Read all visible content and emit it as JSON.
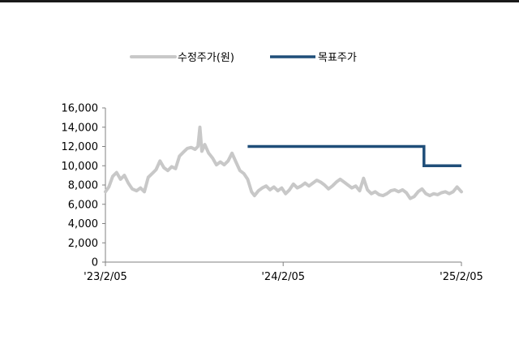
{
  "chart_data": {
    "type": "line",
    "legend": {
      "placement": "top",
      "entries": [
        {
          "label": "수정주가(원)",
          "color": "#c8c8c8"
        },
        {
          "label": "목표주가",
          "color": "#1f4e79"
        }
      ]
    },
    "x_axis": {
      "type": "date",
      "range": [
        "2023-02-05",
        "2025-02-05"
      ],
      "tick_labels": [
        "'23/2/05",
        "'24/2/05",
        "'25/2/05"
      ],
      "tick_dates": [
        "2023-02-05",
        "2024-02-05",
        "2025-02-05"
      ]
    },
    "y_axis": {
      "range": [
        0,
        16000
      ],
      "tick_values": [
        0,
        2000,
        4000,
        6000,
        8000,
        10000,
        12000,
        14000,
        16000
      ],
      "tick_labels": [
        "0",
        "2,000",
        "4,000",
        "6,000",
        "8,000",
        "10,000",
        "12,000",
        "14,000",
        "16,000"
      ]
    },
    "grid": false,
    "series": [
      {
        "name": "수정주가(원)",
        "color": "#c8c8c8",
        "points": [
          [
            "2023-02-05",
            7300
          ],
          [
            "2023-02-12",
            7800
          ],
          [
            "2023-02-20",
            8900
          ],
          [
            "2023-02-28",
            9300
          ],
          [
            "2023-03-08",
            8600
          ],
          [
            "2023-03-16",
            9000
          ],
          [
            "2023-03-24",
            8200
          ],
          [
            "2023-04-01",
            7600
          ],
          [
            "2023-04-10",
            7400
          ],
          [
            "2023-04-18",
            7700
          ],
          [
            "2023-04-26",
            7300
          ],
          [
            "2023-05-04",
            8800
          ],
          [
            "2023-05-12",
            9200
          ],
          [
            "2023-05-20",
            9600
          ],
          [
            "2023-05-28",
            10500
          ],
          [
            "2023-06-05",
            9800
          ],
          [
            "2023-06-13",
            9500
          ],
          [
            "2023-06-21",
            9900
          ],
          [
            "2023-06-29",
            9700
          ],
          [
            "2023-07-07",
            11000
          ],
          [
            "2023-07-15",
            11400
          ],
          [
            "2023-07-23",
            11800
          ],
          [
            "2023-07-31",
            11900
          ],
          [
            "2023-08-08",
            11700
          ],
          [
            "2023-08-14",
            12000
          ],
          [
            "2023-08-18",
            14000
          ],
          [
            "2023-08-22",
            11500
          ],
          [
            "2023-08-28",
            12200
          ],
          [
            "2023-09-05",
            11300
          ],
          [
            "2023-09-13",
            10800
          ],
          [
            "2023-09-21",
            10100
          ],
          [
            "2023-09-29",
            10400
          ],
          [
            "2023-10-07",
            10100
          ],
          [
            "2023-10-15",
            10500
          ],
          [
            "2023-10-23",
            11300
          ],
          [
            "2023-10-31",
            10400
          ],
          [
            "2023-11-08",
            9500
          ],
          [
            "2023-11-16",
            9200
          ],
          [
            "2023-11-24",
            8600
          ],
          [
            "2023-12-02",
            7300
          ],
          [
            "2023-12-08",
            6900
          ],
          [
            "2023-12-16",
            7400
          ],
          [
            "2023-12-24",
            7700
          ],
          [
            "2024-01-01",
            7900
          ],
          [
            "2024-01-09",
            7500
          ],
          [
            "2024-01-17",
            7800
          ],
          [
            "2024-01-25",
            7400
          ],
          [
            "2024-02-02",
            7700
          ],
          [
            "2024-02-10",
            7100
          ],
          [
            "2024-02-18",
            7500
          ],
          [
            "2024-02-26",
            8100
          ],
          [
            "2024-03-05",
            7700
          ],
          [
            "2024-03-13",
            7900
          ],
          [
            "2024-03-21",
            8200
          ],
          [
            "2024-03-29",
            7900
          ],
          [
            "2024-04-06",
            8200
          ],
          [
            "2024-04-14",
            8500
          ],
          [
            "2024-04-22",
            8300
          ],
          [
            "2024-04-30",
            8000
          ],
          [
            "2024-05-08",
            7600
          ],
          [
            "2024-05-16",
            7900
          ],
          [
            "2024-05-24",
            8300
          ],
          [
            "2024-06-01",
            8600
          ],
          [
            "2024-06-09",
            8300
          ],
          [
            "2024-06-17",
            8000
          ],
          [
            "2024-06-25",
            7700
          ],
          [
            "2024-07-03",
            7900
          ],
          [
            "2024-07-11",
            7400
          ],
          [
            "2024-07-19",
            8700
          ],
          [
            "2024-07-27",
            7500
          ],
          [
            "2024-08-04",
            7100
          ],
          [
            "2024-08-12",
            7300
          ],
          [
            "2024-08-20",
            7000
          ],
          [
            "2024-08-28",
            6900
          ],
          [
            "2024-09-05",
            7100
          ],
          [
            "2024-09-13",
            7400
          ],
          [
            "2024-09-21",
            7500
          ],
          [
            "2024-09-29",
            7300
          ],
          [
            "2024-10-07",
            7500
          ],
          [
            "2024-10-15",
            7200
          ],
          [
            "2024-10-23",
            6600
          ],
          [
            "2024-10-31",
            6800
          ],
          [
            "2024-11-08",
            7300
          ],
          [
            "2024-11-16",
            7600
          ],
          [
            "2024-11-24",
            7100
          ],
          [
            "2024-12-02",
            6900
          ],
          [
            "2024-12-10",
            7100
          ],
          [
            "2024-12-18",
            7000
          ],
          [
            "2024-12-26",
            7200
          ],
          [
            "2025-01-03",
            7300
          ],
          [
            "2025-01-11",
            7100
          ],
          [
            "2025-01-19",
            7300
          ],
          [
            "2025-01-27",
            7800
          ],
          [
            "2025-02-05",
            7300
          ]
        ]
      },
      {
        "name": "목표주가",
        "color": "#1f4e79",
        "step": true,
        "points": [
          [
            "2023-11-24",
            12000
          ],
          [
            "2024-11-20",
            12000
          ],
          [
            "2024-11-20",
            10000
          ],
          [
            "2025-02-05",
            10000
          ]
        ]
      }
    ]
  }
}
